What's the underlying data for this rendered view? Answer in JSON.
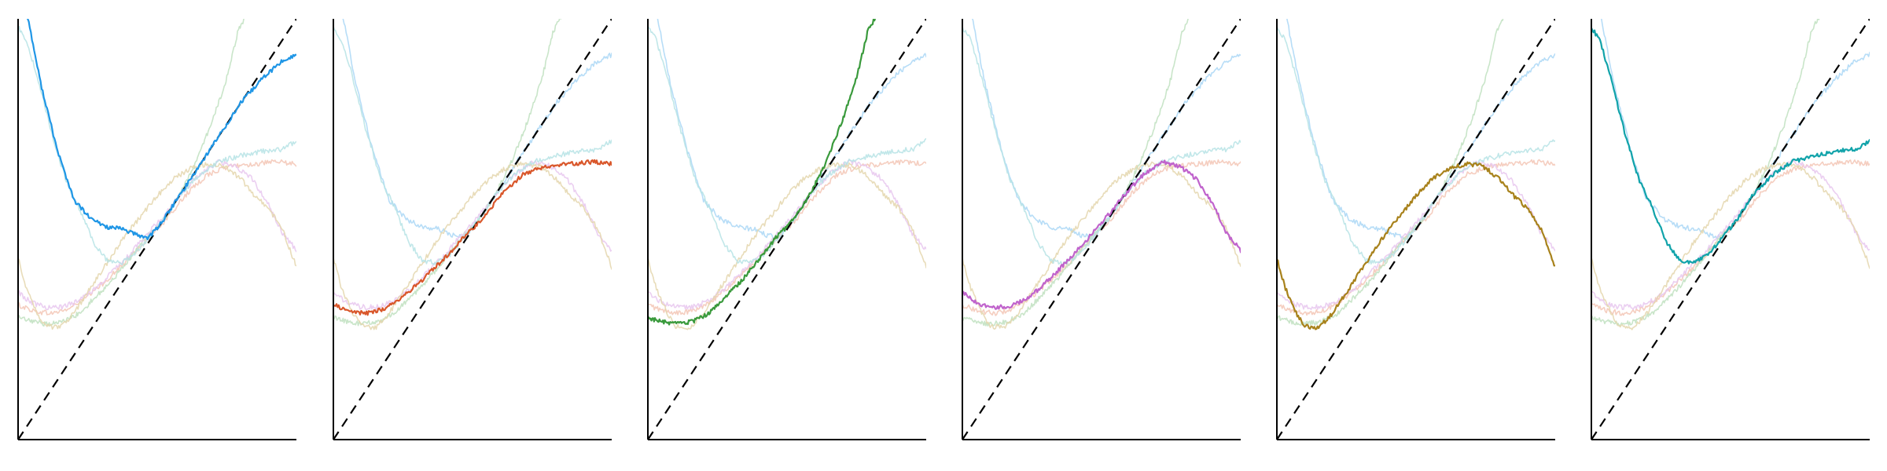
{
  "chart_data": {
    "type": "line",
    "layout": "small-multiples",
    "panel_count": 6,
    "legend": "none",
    "grid": false,
    "xlim": [
      0,
      1
    ],
    "ylim": [
      0,
      1
    ],
    "reference_line": {
      "style": "dashed",
      "color": "#000000",
      "from": [
        0,
        0
      ],
      "to": [
        1,
        1
      ]
    },
    "series": [
      {
        "color": "#1f96e6",
        "soft_color": "#aad7f6",
        "points": [
          [
            0,
            1.3
          ],
          [
            0.03,
            1.02
          ],
          [
            0.08,
            0.85
          ],
          [
            0.14,
            0.69
          ],
          [
            0.2,
            0.57
          ],
          [
            0.26,
            0.525
          ],
          [
            0.32,
            0.505
          ],
          [
            0.38,
            0.5
          ],
          [
            0.43,
            0.485
          ],
          [
            0.47,
            0.48
          ],
          [
            0.52,
            0.52
          ],
          [
            0.58,
            0.58
          ],
          [
            0.65,
            0.65
          ],
          [
            0.72,
            0.72
          ],
          [
            0.8,
            0.8
          ],
          [
            0.88,
            0.86
          ],
          [
            0.95,
            0.9
          ],
          [
            1,
            0.915
          ]
        ]
      },
      {
        "color": "#d9572b",
        "soft_color": "#f3c6b5",
        "points": [
          [
            0,
            0.32
          ],
          [
            0.06,
            0.305
          ],
          [
            0.12,
            0.3
          ],
          [
            0.18,
            0.31
          ],
          [
            0.25,
            0.34
          ],
          [
            0.32,
            0.38
          ],
          [
            0.39,
            0.425
          ],
          [
            0.44,
            0.46
          ],
          [
            0.48,
            0.49
          ],
          [
            0.53,
            0.52
          ],
          [
            0.6,
            0.58
          ],
          [
            0.68,
            0.63
          ],
          [
            0.76,
            0.65
          ],
          [
            0.85,
            0.655
          ],
          [
            0.93,
            0.66
          ],
          [
            1,
            0.655
          ]
        ]
      },
      {
        "color": "#3a9a3c",
        "soft_color": "#bfe0bf",
        "points": [
          [
            0,
            0.29
          ],
          [
            0.05,
            0.28
          ],
          [
            0.1,
            0.275
          ],
          [
            0.16,
            0.28
          ],
          [
            0.22,
            0.3
          ],
          [
            0.28,
            0.34
          ],
          [
            0.34,
            0.38
          ],
          [
            0.4,
            0.43
          ],
          [
            0.46,
            0.48
          ],
          [
            0.52,
            0.52
          ],
          [
            0.58,
            0.58
          ],
          [
            0.64,
            0.66
          ],
          [
            0.7,
            0.76
          ],
          [
            0.75,
            0.86
          ],
          [
            0.79,
            0.97
          ],
          [
            0.83,
            1.02
          ]
        ]
      },
      {
        "color": "#c063cc",
        "soft_color": "#e8c7ef",
        "points": [
          [
            0,
            0.35
          ],
          [
            0.05,
            0.325
          ],
          [
            0.1,
            0.315
          ],
          [
            0.16,
            0.315
          ],
          [
            0.22,
            0.33
          ],
          [
            0.28,
            0.36
          ],
          [
            0.34,
            0.4
          ],
          [
            0.4,
            0.44
          ],
          [
            0.46,
            0.485
          ],
          [
            0.52,
            0.53
          ],
          [
            0.58,
            0.58
          ],
          [
            0.65,
            0.63
          ],
          [
            0.72,
            0.66
          ],
          [
            0.78,
            0.65
          ],
          [
            0.84,
            0.62
          ],
          [
            0.9,
            0.56
          ],
          [
            0.95,
            0.49
          ],
          [
            1,
            0.45
          ]
        ]
      },
      {
        "color": "#a8821c",
        "soft_color": "#e4d6ad",
        "points": [
          [
            0,
            0.43
          ],
          [
            0.03,
            0.36
          ],
          [
            0.07,
            0.3
          ],
          [
            0.1,
            0.27
          ],
          [
            0.15,
            0.265
          ],
          [
            0.2,
            0.3
          ],
          [
            0.26,
            0.36
          ],
          [
            0.32,
            0.42
          ],
          [
            0.38,
            0.48
          ],
          [
            0.44,
            0.53
          ],
          [
            0.5,
            0.58
          ],
          [
            0.56,
            0.62
          ],
          [
            0.62,
            0.645
          ],
          [
            0.68,
            0.655
          ],
          [
            0.74,
            0.65
          ],
          [
            0.8,
            0.62
          ],
          [
            0.85,
            0.58
          ],
          [
            0.9,
            0.55
          ],
          [
            0.95,
            0.5
          ],
          [
            1,
            0.41
          ]
        ]
      },
      {
        "color": "#11a3aa",
        "soft_color": "#b6e3e5",
        "points": [
          [
            0,
            0.98
          ],
          [
            0.03,
            0.95
          ],
          [
            0.07,
            0.86
          ],
          [
            0.12,
            0.73
          ],
          [
            0.17,
            0.62
          ],
          [
            0.22,
            0.55
          ],
          [
            0.27,
            0.47
          ],
          [
            0.32,
            0.425
          ],
          [
            0.37,
            0.42
          ],
          [
            0.42,
            0.44
          ],
          [
            0.47,
            0.48
          ],
          [
            0.52,
            0.52
          ],
          [
            0.58,
            0.58
          ],
          [
            0.65,
            0.63
          ],
          [
            0.72,
            0.66
          ],
          [
            0.8,
            0.675
          ],
          [
            0.88,
            0.685
          ],
          [
            0.95,
            0.69
          ],
          [
            1,
            0.71
          ]
        ]
      }
    ]
  }
}
